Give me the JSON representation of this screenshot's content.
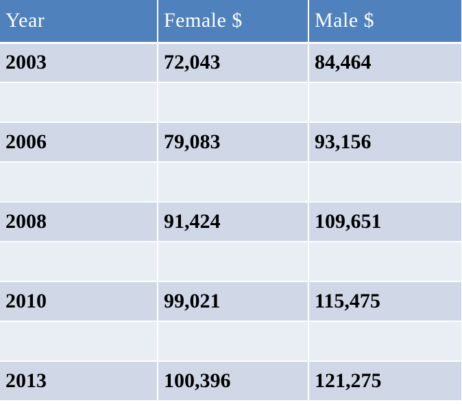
{
  "chart_data": {
    "type": "table",
    "columns": [
      "Year",
      "Female  $",
      "Male  $"
    ],
    "rows": [
      [
        "2003",
        "72,043",
        "84,464"
      ],
      [
        "",
        "",
        ""
      ],
      [
        "2006",
        "79,083",
        "93,156"
      ],
      [
        "",
        "",
        ""
      ],
      [
        "2008",
        "91,424",
        "109,651"
      ],
      [
        "",
        "",
        ""
      ],
      [
        "2010",
        "99,021",
        "115,475"
      ],
      [
        "",
        "",
        ""
      ],
      [
        "2013",
        "100,396",
        "121,275"
      ]
    ],
    "series": [
      {
        "name": "Female  $",
        "values": [
          72043,
          79083,
          91424,
          99021,
          100396
        ]
      },
      {
        "name": "Male  $",
        "values": [
          84464,
          93156,
          109651,
          115475,
          121275
        ]
      }
    ],
    "categories": [
      "2003",
      "2006",
      "2008",
      "2010",
      "2013"
    ]
  },
  "colors": {
    "header": "#4f81bd",
    "row_dark": "#d0d8e8",
    "row_light": "#e9edf4",
    "header_text": "#ffffff",
    "body_text": "#000000"
  }
}
